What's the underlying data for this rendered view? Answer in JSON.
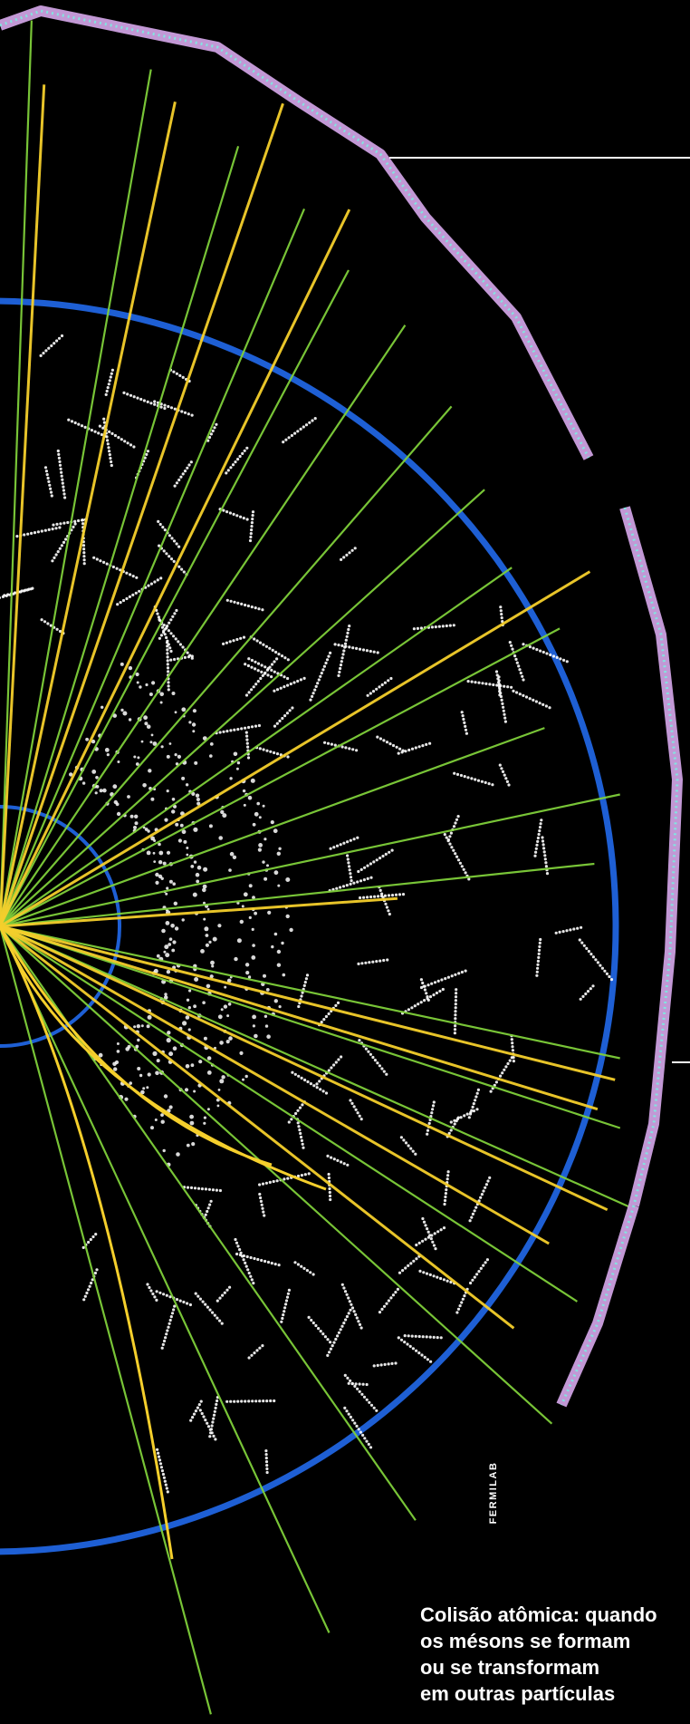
{
  "photo": {
    "subject": "particle-collision-event-display",
    "colors": {
      "background": "#000000",
      "detector_ring": "#1e5fd4",
      "outer_segment": "#d7a8ec",
      "outer_segment_edge": "#7fe8e0",
      "yellow_track": "#f5cf2c",
      "green_track": "#7fcf3a",
      "hit_dots": "#ffffff"
    }
  },
  "credit": "FERMILAB",
  "caption": {
    "lines": [
      "Colisão atômica: quando",
      "os mésons se formam",
      "ou se transformam",
      "em outras partículas"
    ]
  }
}
